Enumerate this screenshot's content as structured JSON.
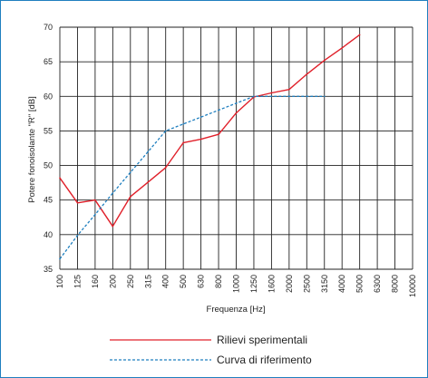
{
  "chart_data": {
    "type": "line",
    "xlabel": "Frequenza [Hz]",
    "ylabel": "Potere fonoisolante \"R\" [dB]",
    "categories": [
      "100",
      "125",
      "160",
      "200",
      "250",
      "315",
      "400",
      "500",
      "630",
      "800",
      "1000",
      "1250",
      "1600",
      "2000",
      "2500",
      "3150",
      "4000",
      "5000",
      "6300",
      "8000",
      "10000"
    ],
    "ylim": [
      35,
      70
    ],
    "yticks": [
      35,
      40,
      45,
      50,
      55,
      60,
      65,
      70
    ],
    "grid": true,
    "legend_position": "bottom",
    "series": [
      {
        "name": "Rilievi sperimentali",
        "color": "#e0202a",
        "dash": "solid",
        "values": [
          48.2,
          44.6,
          45.0,
          41.2,
          45.5,
          47.6,
          49.7,
          53.3,
          53.8,
          54.5,
          57.6,
          59.9,
          60.5,
          61.0,
          63.2,
          65.2,
          67.0,
          68.9,
          null,
          null,
          null
        ]
      },
      {
        "name": "Curva di riferimento",
        "color": "#1f7fbf",
        "dash": "dashed",
        "values": [
          36.5,
          39.9,
          42.9,
          46.0,
          49.0,
          52.0,
          55.0,
          56.0,
          57.0,
          58.0,
          59.0,
          60.0,
          60.0,
          60.0,
          60.0,
          60.0,
          null,
          null,
          null,
          null,
          null
        ]
      }
    ]
  }
}
